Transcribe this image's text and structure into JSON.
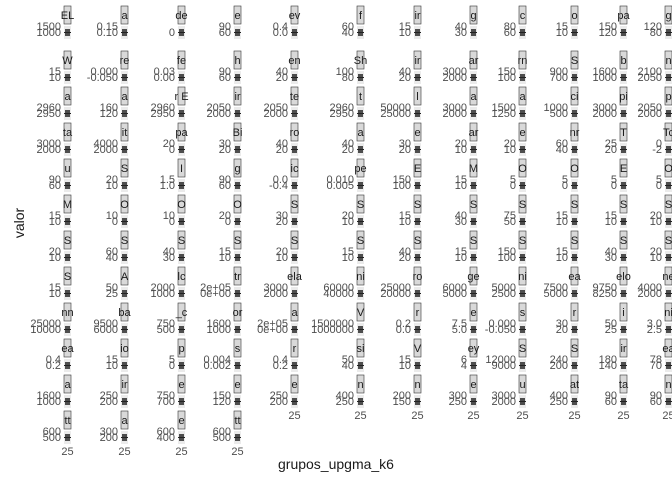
{
  "chart_data": {
    "type": "bar",
    "xlabel": "grupos_upgma_k6",
    "ylabel": "valor",
    "facets_per_row": 12,
    "x_ticks": [
      "25"
    ],
    "panels": [
      {
        "strip": "EL",
        "ticks": [
          "1000",
          "1500"
        ]
      },
      {
        "strip": "a",
        "ticks": [
          "0.10",
          "0.15"
        ]
      },
      {
        "strip": "de",
        "ticks": [
          "0"
        ]
      },
      {
        "strip": "e",
        "ticks": [
          "60",
          "90"
        ]
      },
      {
        "strip": "ev",
        "ticks": [
          "0.0",
          "0.4"
        ]
      },
      {
        "strip": "f",
        "ticks": [
          "40",
          "60"
        ]
      },
      {
        "strip": "ir",
        "ticks": [
          "10",
          "15"
        ]
      },
      {
        "strip": "g",
        "ticks": [
          "30",
          "40"
        ]
      },
      {
        "strip": "c",
        "ticks": [
          "60",
          "80"
        ]
      },
      {
        "strip": "o",
        "ticks": [
          "10",
          "15"
        ]
      },
      {
        "strip": "pa",
        "ticks": [
          "120",
          "150"
        ]
      },
      {
        "strip": "g",
        "ticks": [
          "80",
          "120"
        ]
      },
      {
        "strip": "W",
        "ticks": [
          "10",
          "15"
        ]
      },
      {
        "strip": "re",
        "ticks": [
          "-0.050",
          "0.000"
        ]
      },
      {
        "strip": "fe",
        "ticks": [
          "0.00",
          "0.03"
        ]
      },
      {
        "strip": "h",
        "ticks": [
          "60",
          "90"
        ]
      },
      {
        "strip": "en",
        "ticks": [
          "20",
          "40"
        ]
      },
      {
        "strip": "Sh",
        "ticks": [
          "80",
          "100"
        ]
      },
      {
        "strip": "ir",
        "ticks": [
          "20",
          "40"
        ]
      },
      {
        "strip": "ar",
        "ticks": [
          "2000",
          "3000"
        ]
      },
      {
        "strip": "rn",
        "ticks": [
          "100",
          "150"
        ]
      },
      {
        "strip": "S",
        "ticks": [
          "700",
          "900"
        ]
      },
      {
        "strip": "b",
        "ticks": [
          "1000",
          "1600"
        ]
      },
      {
        "strip": "n",
        "ticks": [
          "2050",
          "2100"
        ]
      },
      {
        "strip": "a",
        "ticks": [
          "2950",
          "2960"
        ]
      },
      {
        "strip": "a",
        "ticks": [
          "120",
          "160"
        ]
      },
      {
        "strip": "r E",
        "ticks": [
          "2950",
          "2960"
        ]
      },
      {
        "strip": "ir",
        "ticks": [
          "2000",
          "2050"
        ]
      },
      {
        "strip": "te",
        "ticks": [
          "2000",
          "2050"
        ]
      },
      {
        "strip": "t",
        "ticks": [
          "2950",
          "2960"
        ]
      },
      {
        "strip": "l",
        "ticks": [
          "25000",
          "50000"
        ]
      },
      {
        "strip": "a",
        "ticks": [
          "2000",
          "3000"
        ]
      },
      {
        "strip": "a",
        "ticks": [
          "1250",
          "1500"
        ]
      },
      {
        "strip": "ci",
        "ticks": [
          "500",
          "1000"
        ]
      },
      {
        "strip": "pi",
        "ticks": [
          "2000",
          "3000"
        ]
      },
      {
        "strip": "p",
        "ticks": [
          "2000",
          "2050"
        ]
      },
      {
        "strip": "ta",
        "ticks": [
          "2000",
          "3000"
        ]
      },
      {
        "strip": "it",
        "ticks": [
          "2000",
          "4000"
        ]
      },
      {
        "strip": "pa",
        "ticks": [
          "0",
          "20"
        ]
      },
      {
        "strip": "Bi",
        "ticks": [
          "20",
          "30"
        ]
      },
      {
        "strip": "ro",
        "ticks": [
          "20",
          "40"
        ]
      },
      {
        "strip": "a",
        "ticks": [
          "20",
          "40"
        ]
      },
      {
        "strip": "e",
        "ticks": [
          "20",
          "30"
        ]
      },
      {
        "strip": "ar",
        "ticks": [
          "10",
          "20"
        ]
      },
      {
        "strip": "e",
        "ticks": [
          "10",
          "20"
        ]
      },
      {
        "strip": "nr",
        "ticks": [
          "40",
          "60"
        ]
      },
      {
        "strip": "T",
        "ticks": [
          "20",
          "25"
        ]
      },
      {
        "strip": "Tc",
        "ticks": [
          "-2",
          "0"
        ]
      },
      {
        "strip": "u",
        "ticks": [
          "60",
          "90"
        ]
      },
      {
        "strip": "S",
        "ticks": [
          "10",
          "20"
        ]
      },
      {
        "strip": "I",
        "ticks": [
          "1.0",
          "1.5"
        ]
      },
      {
        "strip": "g",
        "ticks": [
          "60",
          "90"
        ]
      },
      {
        "strip": "ic",
        "ticks": [
          "-0.4",
          "0.0"
        ]
      },
      {
        "strip": "pe",
        "ticks": [
          "0.005",
          "0.010"
        ]
      },
      {
        "strip": "E",
        "ticks": [
          "100",
          "150"
        ]
      },
      {
        "strip": "M",
        "ticks": [
          "10",
          "15"
        ]
      },
      {
        "strip": "O",
        "ticks": [
          "0",
          "5"
        ]
      },
      {
        "strip": "O",
        "ticks": [
          "0",
          "5"
        ]
      },
      {
        "strip": "E",
        "ticks": [
          "0",
          "5"
        ]
      },
      {
        "strip": "O",
        "ticks": [
          "0",
          "5"
        ]
      },
      {
        "strip": "M",
        "ticks": [
          "10",
          "15"
        ]
      },
      {
        "strip": "O",
        "ticks": [
          "0",
          "10"
        ]
      },
      {
        "strip": "O",
        "ticks": [
          "0",
          "10"
        ]
      },
      {
        "strip": "O",
        "ticks": [
          "0",
          "20"
        ]
      },
      {
        "strip": "S",
        "ticks": [
          "20",
          "30"
        ]
      },
      {
        "strip": "S",
        "ticks": [
          "10",
          "20"
        ]
      },
      {
        "strip": "S",
        "ticks": [
          "10",
          "15"
        ]
      },
      {
        "strip": "S",
        "ticks": [
          "30",
          "40"
        ]
      },
      {
        "strip": "S",
        "ticks": [
          "50",
          "75"
        ]
      },
      {
        "strip": "S",
        "ticks": [
          "10",
          "15"
        ]
      },
      {
        "strip": "S",
        "ticks": [
          "10",
          "15"
        ]
      },
      {
        "strip": "S",
        "ticks": [
          "10",
          "20"
        ]
      },
      {
        "strip": "S",
        "ticks": [
          "10",
          "20"
        ]
      },
      {
        "strip": "S",
        "ticks": [
          "40",
          "60"
        ]
      },
      {
        "strip": "S",
        "ticks": [
          "30",
          "40"
        ]
      },
      {
        "strip": "S",
        "ticks": [
          "10",
          "15"
        ]
      },
      {
        "strip": "S",
        "ticks": [
          "10",
          "20"
        ]
      },
      {
        "strip": "S",
        "ticks": [
          "10",
          "15"
        ]
      },
      {
        "strip": "S",
        "ticks": [
          "20",
          "40"
        ]
      },
      {
        "strip": "S",
        "ticks": [
          "10",
          "15"
        ]
      },
      {
        "strip": "S",
        "ticks": [
          "100",
          "150"
        ]
      },
      {
        "strip": "S",
        "ticks": [
          "10",
          "15"
        ]
      },
      {
        "strip": "S",
        "ticks": [
          "30",
          "40"
        ]
      },
      {
        "strip": "S",
        "ticks": [
          "10",
          "20"
        ]
      },
      {
        "strip": "S",
        "ticks": [
          "10",
          "15"
        ]
      },
      {
        "strip": "A",
        "ticks": [
          "25",
          "50"
        ]
      },
      {
        "strip": "lc",
        "ticks": [
          "1000",
          "2000"
        ]
      },
      {
        "strip": "tr",
        "ticks": [
          "0e+00",
          "2e+05"
        ]
      },
      {
        "strip": "ela",
        "ticks": [
          "2000",
          "3000"
        ]
      },
      {
        "strip": "ni",
        "ticks": [
          "40000",
          "60000"
        ]
      },
      {
        "strip": "ro",
        "ticks": [
          "20000",
          "25000"
        ]
      },
      {
        "strip": "ge",
        "ticks": [
          "5000",
          "6000"
        ]
      },
      {
        "strip": "ni",
        "ticks": [
          "2500",
          "5000"
        ]
      },
      {
        "strip": "ea",
        "ticks": [
          "5000",
          "7500"
        ]
      },
      {
        "strip": "elo",
        "ticks": [
          "8250",
          "9750"
        ]
      },
      {
        "strip": "ne",
        "ticks": [
          "2000",
          "4000"
        ]
      },
      {
        "strip": "nn",
        "ticks": [
          "10000",
          "25000"
        ]
      },
      {
        "strip": "ba",
        "ticks": [
          "6000",
          "9500"
        ]
      },
      {
        "strip": "_c",
        "ticks": [
          "500",
          "750"
        ]
      },
      {
        "strip": "or",
        "ticks": [
          "1000",
          "1600"
        ]
      },
      {
        "strip": "a",
        "ticks": [
          "0e+00",
          "2e+05"
        ]
      },
      {
        "strip": "V",
        "ticks": [
          "1000000",
          "1500000"
        ]
      },
      {
        "strip": "r",
        "ticks": [
          "0.0",
          "0.2"
        ]
      },
      {
        "strip": "e",
        "ticks": [
          "5.0",
          "7.5"
        ]
      },
      {
        "strip": "s",
        "ticks": [
          "-0.050",
          "0.000"
        ]
      },
      {
        "strip": "r",
        "ticks": [
          "20",
          "30"
        ]
      },
      {
        "strip": "i",
        "ticks": [
          "25",
          "50"
        ]
      },
      {
        "strip": "ni",
        "ticks": [
          "2.5",
          "3.0"
        ]
      },
      {
        "strip": "ea",
        "ticks": [
          "0.2",
          "0.4"
        ]
      },
      {
        "strip": "io",
        "ticks": [
          "10",
          "15"
        ]
      },
      {
        "strip": "p",
        "ticks": [
          "0",
          "5"
        ]
      },
      {
        "strip": "s",
        "ticks": [
          "0.002",
          "0.004"
        ]
      },
      {
        "strip": "r",
        "ticks": [
          "0.2",
          "0.4"
        ]
      },
      {
        "strip": "si",
        "ticks": [
          "40",
          "50"
        ]
      },
      {
        "strip": "V",
        "ticks": [
          "10",
          "15"
        ]
      },
      {
        "strip": "ey",
        "ticks": [
          "4",
          "6"
        ]
      },
      {
        "strip": "S",
        "ticks": [
          "9000",
          "12000"
        ]
      },
      {
        "strip": "S",
        "ticks": [
          "200",
          "240"
        ]
      },
      {
        "strip": "ir",
        "ticks": [
          "140",
          "180"
        ]
      },
      {
        "strip": "ea",
        "ticks": [
          "70",
          "78"
        ]
      },
      {
        "strip": "a",
        "ticks": [
          "1000",
          "1600"
        ]
      },
      {
        "strip": "ir",
        "ticks": [
          "200",
          "250"
        ]
      },
      {
        "strip": "e",
        "ticks": [
          "700",
          "750"
        ]
      },
      {
        "strip": "e",
        "ticks": [
          "120",
          "150"
        ]
      },
      {
        "strip": "e",
        "ticks": [
          "200",
          "250"
        ]
      },
      {
        "strip": "n",
        "ticks": [
          "250",
          "400"
        ]
      },
      {
        "strip": "n",
        "ticks": [
          "150",
          "200"
        ]
      },
      {
        "strip": "e",
        "ticks": [
          "250",
          "300"
        ]
      },
      {
        "strip": "u",
        "ticks": [
          "2000",
          "3000"
        ]
      },
      {
        "strip": "at",
        "ticks": [
          "250",
          "400"
        ]
      },
      {
        "strip": "ta",
        "ticks": [
          "60",
          "90"
        ]
      },
      {
        "strip": "n",
        "ticks": [
          "60",
          "90"
        ]
      },
      {
        "strip": "tt",
        "ticks": [
          "500",
          "600"
        ]
      },
      {
        "strip": "a",
        "ticks": [
          "200",
          "300"
        ]
      },
      {
        "strip": "e",
        "ticks": [
          "400",
          "600"
        ]
      },
      {
        "strip": "tt",
        "ticks": [
          "500",
          "600"
        ]
      }
    ]
  }
}
